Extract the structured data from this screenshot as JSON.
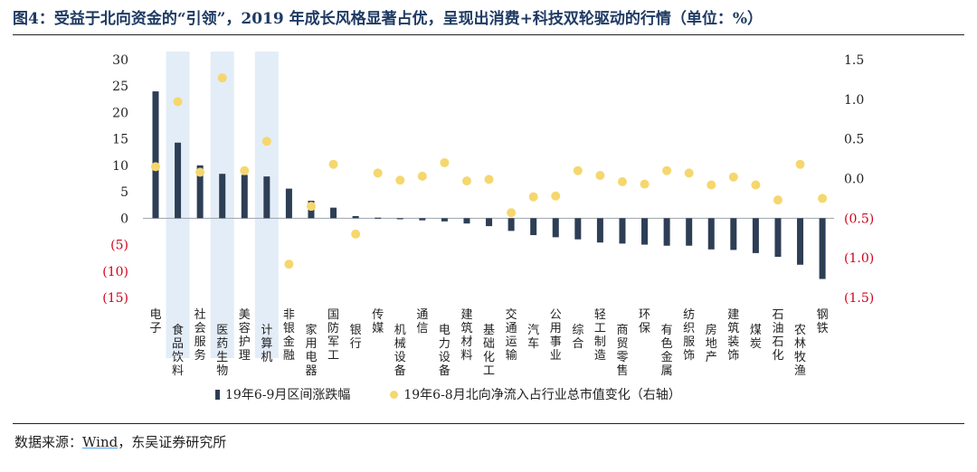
{
  "title": "图4：受益于北向资金的“引领”，2019 年成长风格显著占优，呈现出消费+科技双轮驱动的行情（单位：%）",
  "source": {
    "prefix": "数据来源：",
    "wind": "Wind",
    "suffix": "，东吴证券研究所"
  },
  "colors": {
    "bar": "#2d3e55",
    "dot": "#f5d76e",
    "highlight": "#e3edf8",
    "negative_tick": "#d0021b",
    "title": "#1f3a63"
  },
  "chart_data": {
    "type": "bar",
    "categories": [
      "电子",
      "食品饮料",
      "社会服务",
      "医药生物",
      "美容护理",
      "计算机",
      "非银金融",
      "家用电器",
      "国防军工",
      "银行",
      "传媒",
      "机械设备",
      "通信",
      "电力设备",
      "建筑材料",
      "基础化工",
      "交通运输",
      "汽车",
      "公用事业",
      "综合",
      "轻工制造",
      "商贸零售",
      "环保",
      "有色金属",
      "纺织服饰",
      "房地产",
      "建筑装饰",
      "煤炭",
      "石油石化",
      "农林牧渔",
      "钢铁"
    ],
    "highlighted_categories": [
      "食品饮料",
      "医药生物",
      "计算机"
    ],
    "series": [
      {
        "name": "19年6-9月区间涨跌幅",
        "axis": "left",
        "type": "bar",
        "values": [
          24.0,
          14.3,
          10.0,
          8.4,
          8.2,
          7.9,
          5.6,
          3.3,
          2.0,
          0.4,
          0.0,
          -0.2,
          -0.4,
          -0.6,
          -1.0,
          -1.5,
          -2.4,
          -3.2,
          -3.6,
          -4.0,
          -4.6,
          -4.8,
          -5.0,
          -5.2,
          -5.2,
          -5.9,
          -6.0,
          -6.6,
          -7.3,
          -8.8,
          -11.5
        ]
      },
      {
        "name": "19年6-8月北向净流入占行业总市值变化（右轴）",
        "axis": "right",
        "type": "scatter",
        "values": [
          0.15,
          0.97,
          0.08,
          1.27,
          0.1,
          0.47,
          -1.08,
          -0.35,
          0.18,
          -0.7,
          0.07,
          -0.02,
          0.03,
          0.2,
          -0.03,
          -0.01,
          -0.43,
          -0.23,
          -0.22,
          0.1,
          0.04,
          -0.04,
          -0.07,
          0.1,
          0.07,
          -0.08,
          0.02,
          -0.08,
          -0.27,
          0.18,
          -0.25
        ]
      }
    ],
    "left_axis": {
      "ylim": [
        -15,
        30
      ],
      "ticks": [
        "30",
        "25",
        "20",
        "15",
        "10",
        "5",
        "0",
        "(5)",
        "(10)",
        "(15)"
      ]
    },
    "right_axis": {
      "ylim": [
        -1.5,
        1.5
      ],
      "ticks": [
        "1.5",
        "1.0",
        "0.5",
        "0.0",
        "(0.5)",
        "(1.0)",
        "(1.5)"
      ]
    },
    "legend": {
      "placement": "bottom"
    }
  }
}
